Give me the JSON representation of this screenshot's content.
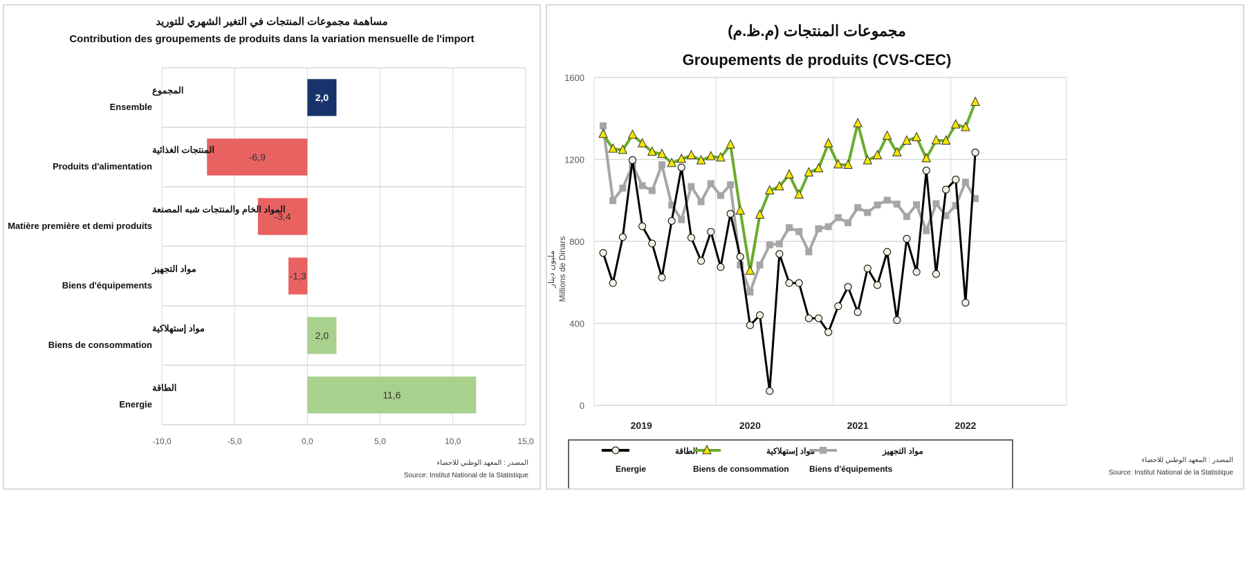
{
  "left_chart": {
    "title_ar": "مساهمة مجموعات المنتجات في التغير الشهري للتوريد",
    "title_fr": "Contribution des groupements de produits dans la variation mensuelle de l'import",
    "source_ar": "المصدر : المعهد الوطني للاحصاء",
    "source_fr": "Source: Institut National de la Statistique"
  },
  "right_chart": {
    "title_ar": "مجموعات المنتجات (م.ظ.م)",
    "title_fr": "Groupements de produits (CVS-CEC)",
    "source_ar": "المصدر : المعهد الوطني للاحصاء",
    "source_fr": "Source: Institut National de la Statistique"
  },
  "chart_data": [
    {
      "type": "bar",
      "orientation": "horizontal",
      "title": "Contribution des groupements de produits dans la variation mensuelle de l'import",
      "categories": [
        {
          "ar": "المجموع",
          "fr": "Ensemble"
        },
        {
          "ar": "المنتجات الغذائية",
          "fr": "Produits d'alimentation"
        },
        {
          "ar": "المواد الخام والمنتجات شبه المصنعة",
          "fr": "Matière première et demi produits"
        },
        {
          "ar": "مواد التجهيز",
          "fr": "Biens d'équipements"
        },
        {
          "ar": "مواد إستهلاكية",
          "fr": "Biens de consommation"
        },
        {
          "ar": "الطاقة",
          "fr": "Energie"
        }
      ],
      "values": [
        2.0,
        -6.9,
        -3.4,
        -1.3,
        2.0,
        11.6
      ],
      "value_labels": [
        "2,0",
        "-6,9",
        "-3,4",
        "-1,3",
        "2,0",
        "11,6"
      ],
      "colors": [
        "#17336b",
        "#e96262",
        "#e96262",
        "#e96262",
        "#a9d18e",
        "#a9d18e"
      ],
      "label_colors": [
        "#ffffff",
        "#333333",
        "#333333",
        "#333333",
        "#333333",
        "#333333"
      ],
      "xlim": [
        -10,
        15
      ],
      "xticks": [
        -10,
        -5,
        0,
        5,
        10,
        15
      ],
      "xtick_labels": [
        "-10,0",
        "-5,0",
        "0,0",
        "5,0",
        "10,0",
        "15,0"
      ],
      "grid": true
    },
    {
      "type": "line",
      "title": "Groupements de produits (CVS-CEC)",
      "ylabel_ar": "مليون دينار",
      "ylabel": "Millions de Dinars",
      "ylim": [
        0,
        1600
      ],
      "yticks": [
        0,
        400,
        800,
        1200,
        1600
      ],
      "x_start": "2019-01",
      "x_frequency": "monthly",
      "x_end": "2022-03",
      "xtick_labels": [
        "2019",
        "2020",
        "2021",
        "2022"
      ],
      "grid": true,
      "legend_position": "bottom",
      "series": [
        {
          "name": "Energie",
          "name_ar": "الطاقة",
          "color": "#000000",
          "marker": "circle",
          "marker_fill": "#eef3e4",
          "values": [
            744,
            597,
            821,
            1197,
            874,
            790,
            624,
            900,
            1161,
            818,
            705,
            847,
            675,
            935,
            725,
            391,
            440,
            70,
            739,
            597,
            597,
            425,
            425,
            357,
            484,
            578,
            455,
            668,
            587,
            749,
            416,
            813,
            651,
            1146,
            641,
            1053,
            1102,
            501,
            1234
          ]
        },
        {
          "name": "Biens de consommation",
          "name_ar": "مواد إستهلاكية",
          "color": "#6aaa2d",
          "marker": "triangle",
          "marker_fill": "#f3e600",
          "values": [
            1324,
            1252,
            1246,
            1320,
            1278,
            1237,
            1226,
            1182,
            1202,
            1220,
            1195,
            1215,
            1209,
            1272,
            950,
            656,
            930,
            1048,
            1068,
            1126,
            1028,
            1136,
            1156,
            1278,
            1175,
            1173,
            1376,
            1195,
            1220,
            1315,
            1234,
            1291,
            1308,
            1205,
            1293,
            1291,
            1370,
            1357,
            1480
          ]
        },
        {
          "name": "Biens d'équipements",
          "name_ar": "مواد التجهيز",
          "color": "#a6a6a6",
          "marker": "square",
          "marker_fill": "#a6a6a6",
          "values": [
            1364,
            999,
            1060,
            1171,
            1072,
            1048,
            1174,
            977,
            906,
            1068,
            994,
            1082,
            1024,
            1077,
            685,
            553,
            685,
            783,
            788,
            867,
            848,
            749,
            862,
            872,
            916,
            891,
            965,
            941,
            978,
            1001,
            982,
            921,
            979,
            852,
            984,
            926,
            975,
            1089,
            1009
          ]
        }
      ]
    }
  ]
}
